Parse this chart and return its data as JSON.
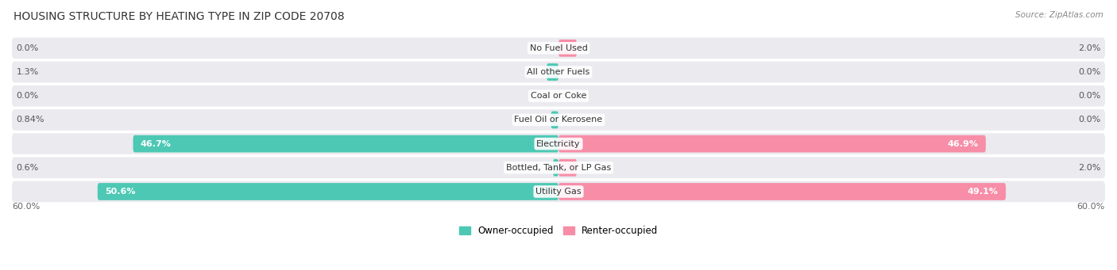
{
  "title": "HOUSING STRUCTURE BY HEATING TYPE IN ZIP CODE 20708",
  "source": "Source: ZipAtlas.com",
  "categories": [
    "Utility Gas",
    "Bottled, Tank, or LP Gas",
    "Electricity",
    "Fuel Oil or Kerosene",
    "Coal or Coke",
    "All other Fuels",
    "No Fuel Used"
  ],
  "owner_values": [
    50.6,
    0.6,
    46.7,
    0.84,
    0.0,
    1.3,
    0.0
  ],
  "renter_values": [
    49.1,
    2.0,
    46.9,
    0.0,
    0.0,
    0.0,
    2.0
  ],
  "owner_color": "#4DC8B4",
  "renter_color": "#F78DA7",
  "owner_label": "Owner-occupied",
  "renter_label": "Renter-occupied",
  "max_val": 60.0,
  "axis_label": "60.0%",
  "background_color": "#FFFFFF",
  "row_bg_color": "#EAEAEF",
  "title_fontsize": 10,
  "label_fontsize": 8.5,
  "value_fontsize": 8,
  "category_fontsize": 8
}
